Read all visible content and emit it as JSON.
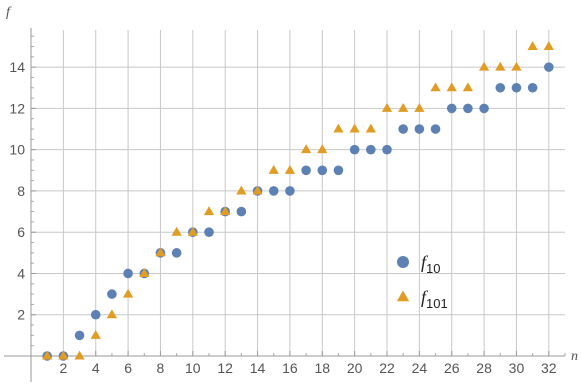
{
  "chart_data": {
    "type": "scatter",
    "xlabel": "n",
    "ylabel": "f",
    "xlim": [
      0,
      33
    ],
    "ylim": [
      0,
      15.8
    ],
    "x_ticks": [
      2,
      4,
      6,
      8,
      10,
      12,
      14,
      16,
      18,
      20,
      22,
      24,
      26,
      28,
      30,
      32
    ],
    "y_ticks": [
      2,
      4,
      6,
      8,
      10,
      12,
      14
    ],
    "grid": true,
    "legend_position": "right",
    "series": [
      {
        "name": "f",
        "name_sub": "10",
        "color": "#5e81b5",
        "marker": "circle",
        "x": [
          1,
          2,
          3,
          4,
          5,
          6,
          7,
          8,
          9,
          10,
          11,
          12,
          13,
          14,
          15,
          16,
          17,
          18,
          19,
          20,
          21,
          22,
          23,
          24,
          25,
          26,
          27,
          28,
          29,
          30,
          31,
          32
        ],
        "y": [
          0,
          0,
          1,
          2,
          3,
          4,
          4,
          5,
          5,
          6,
          6,
          7,
          7,
          8,
          8,
          8,
          9,
          9,
          9,
          10,
          10,
          10,
          11,
          11,
          11,
          12,
          12,
          12,
          13,
          13,
          13,
          14
        ]
      },
      {
        "name": "f",
        "name_sub": "101",
        "color": "#e19c24",
        "marker": "triangle",
        "x": [
          1,
          2,
          3,
          4,
          5,
          6,
          7,
          8,
          9,
          10,
          11,
          12,
          13,
          14,
          15,
          16,
          17,
          18,
          19,
          20,
          21,
          22,
          23,
          24,
          25,
          26,
          27,
          28,
          29,
          30,
          31,
          32
        ],
        "y": [
          0,
          0,
          0,
          1,
          2,
          3,
          4,
          5,
          6,
          6,
          7,
          7,
          8,
          8,
          9,
          9,
          10,
          10,
          11,
          11,
          11,
          12,
          12,
          12,
          13,
          13,
          13,
          14,
          14,
          14,
          15,
          15
        ]
      }
    ]
  }
}
